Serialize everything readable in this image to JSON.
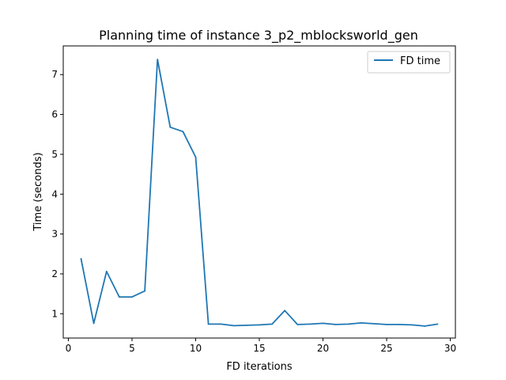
{
  "chart_data": {
    "type": "line",
    "title": "Planning time of instance 3_p2_mblocksworld_gen",
    "xlabel": "FD iterations",
    "ylabel": "Time (seconds)",
    "xlim": [
      -0.4,
      30.4
    ],
    "ylim": [
      0.39,
      7.72
    ],
    "xticks": [
      0,
      5,
      10,
      15,
      20,
      25,
      30
    ],
    "yticks": [
      1,
      2,
      3,
      4,
      5,
      6,
      7
    ],
    "grid": false,
    "legend_position": "top-right",
    "line_color": "#1f77b4",
    "series": [
      {
        "name": "FD time",
        "x": [
          1,
          2,
          3,
          4,
          5,
          6,
          7,
          8,
          9,
          10,
          11,
          12,
          13,
          14,
          15,
          16,
          17,
          18,
          19,
          20,
          21,
          22,
          23,
          24,
          25,
          26,
          27,
          28,
          29
        ],
        "y": [
          2.38,
          0.76,
          2.06,
          1.42,
          1.42,
          1.57,
          7.38,
          5.68,
          5.57,
          4.93,
          0.74,
          0.74,
          0.7,
          0.71,
          0.72,
          0.74,
          1.08,
          0.73,
          0.74,
          0.76,
          0.73,
          0.74,
          0.77,
          0.75,
          0.73,
          0.73,
          0.72,
          0.69,
          0.74
        ]
      }
    ]
  }
}
